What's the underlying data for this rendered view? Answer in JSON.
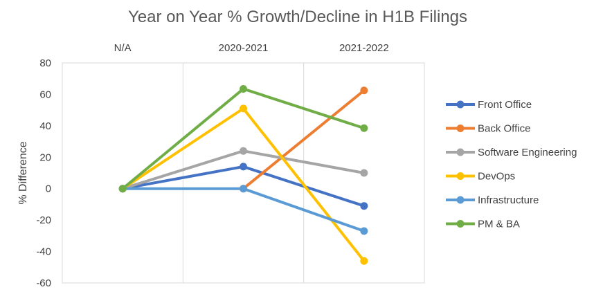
{
  "chart_data": {
    "type": "line",
    "title": "Year on Year % Growth/Decline in H1B Filings",
    "xlabel": "",
    "ylabel": "% Difference",
    "categories": [
      "N/A",
      "2020-2021",
      "2021-2022"
    ],
    "ylim": [
      -60,
      80
    ],
    "yticks": [
      -60,
      -40,
      -20,
      0,
      20,
      40,
      60,
      80
    ],
    "grid": "vertical",
    "legend_position": "right",
    "series": [
      {
        "name": "Front Office",
        "color": "#4472C4",
        "values": [
          0,
          14,
          -11
        ]
      },
      {
        "name": "Back Office",
        "color": "#ED7D31",
        "values": [
          null,
          0,
          62.5
        ]
      },
      {
        "name": "Software Engineering",
        "color": "#A5A5A5",
        "values": [
          0,
          24,
          10
        ]
      },
      {
        "name": "DevOps",
        "color": "#FFC000",
        "values": [
          0,
          51,
          -46
        ]
      },
      {
        "name": "Infrastructure",
        "color": "#5B9BD5",
        "values": [
          0,
          0,
          -27
        ]
      },
      {
        "name": "PM & BA",
        "color": "#70AD47",
        "values": [
          0,
          63.5,
          38.5
        ]
      }
    ]
  }
}
